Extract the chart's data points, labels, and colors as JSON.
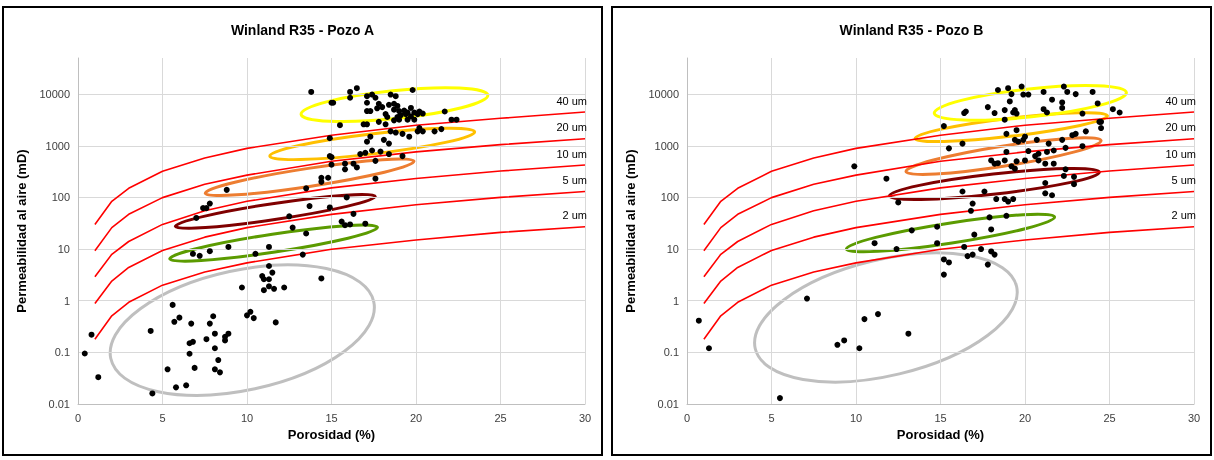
{
  "chart_data": [
    {
      "type": "scatter",
      "title": "Winland R35 - Pozo A",
      "xlabel": "Porosidad (%)",
      "ylabel": "Permeabilidad al aire (mD)",
      "xlim": [
        0,
        30
      ],
      "xticks": [
        0,
        5,
        10,
        15,
        20,
        25,
        30
      ],
      "ylim": [
        0.01,
        50000
      ],
      "yticks": [
        0.01,
        0.1,
        1,
        10,
        100,
        1000,
        10000
      ],
      "log": "y",
      "grid": true,
      "legend": false,
      "series": [
        {
          "type": "scatter",
          "color": "#000000",
          "marker": "circle",
          "x": [
            0.4,
            0.8,
            1.2,
            4.3,
            4.4,
            5.3,
            5.6,
            5.7,
            5.8,
            6.0,
            6.4,
            6.6,
            6.6,
            6.7,
            6.8,
            6.9,
            7.6,
            7.8,
            8.0,
            8.1,
            8.1,
            8.1,
            8.3,
            8.4,
            8.7,
            8.7,
            8.9,
            9.7,
            10.0,
            10.2,
            10.4,
            10.5,
            10.9,
            11.0,
            11.0,
            11.3,
            11.3,
            11.3,
            11.3,
            11.5,
            11.6,
            11.7,
            12.2,
            14.4,
            6.8,
            7.2,
            7.8,
            8.9,
            7.0,
            7.4,
            7.6,
            7.8,
            8.8,
            12.5,
            12.7,
            13.3,
            13.5,
            13.5,
            13.7,
            14.4,
            14.4,
            14.8,
            14.9,
            13.8,
            15.0,
            15.1,
            15.0,
            15.0,
            16.1,
            16.5,
            16.1,
            17.1,
            17.4,
            17.6,
            17.1,
            17.8,
            18.5,
            18.8,
            19.8,
            17.1,
            17.3,
            17.7,
            18.0,
            18.4,
            18.7,
            18.9,
            18.7,
            19.0,
            19.3,
            19.5,
            19.7,
            19.9,
            20.1,
            20.2,
            20.4,
            19.7,
            19.4,
            19.1,
            18.9,
            18.2,
            18.3,
            18.7,
            19.0,
            19.5,
            19.9,
            21.7,
            22.1,
            22.4,
            15.5,
            16.9,
            17.1,
            17.8,
            18.2,
            18.5,
            18.8,
            19.2,
            19.6,
            20.1,
            20.2,
            20.4,
            21.1,
            21.5,
            14.9,
            17.1,
            17.3,
            18.1,
            18.4,
            17.9,
            17.4,
            17.0,
            16.7,
            18.4,
            19.2,
            14.9,
            15.8,
            16.3,
            16.5,
            15.8,
            17.6,
            17.6,
            15.9,
            16.3,
            15.6,
            15.8,
            16.1,
            17.0
          ],
          "values": [
            0.095,
            0.22,
            0.033,
            0.26,
            0.016,
            0.047,
            0.83,
            0.39,
            0.021,
            0.47,
            0.023,
            0.15,
            0.094,
            0.36,
            0.16,
            0.05,
            0.18,
            0.36,
            0.5,
            0.23,
            0.047,
            0.12,
            0.071,
            0.041,
            0.2,
            0.17,
            0.23,
            1.8,
            0.52,
            0.61,
            0.46,
            8.1,
            3,
            2.6,
            1.6,
            11,
            4.7,
            2.6,
            1.9,
            3.5,
            1.7,
            0.38,
            1.8,
            2.7,
            8.1,
            7.4,
            9.1,
            11,
            40,
            62,
            62,
            76,
            140,
            43,
            26,
            7.8,
            20,
            150,
            68,
            240,
            200,
            240,
            64,
            11000,
            6800,
            6800,
            600,
            430,
            11000,
            13000,
            8500,
            9100,
            9800,
            8500,
            6800,
            6500,
            9800,
            9100,
            12000,
            4700,
            4700,
            5300,
            5600,
            6200,
            6500,
            5900,
            5000,
            4700,
            4800,
            4400,
            5400,
            4400,
            4100,
            4600,
            4200,
            3700,
            4100,
            3900,
            3600,
            4100,
            3600,
            3100,
            3200,
            3200,
            3200,
            4600,
            3200,
            3200,
            2500,
            2600,
            2600,
            2900,
            2600,
            1900,
            1800,
            1700,
            1500,
            1900,
            2200,
            1900,
            1900,
            2100,
            1400,
            1200,
            1500,
            1300,
            1100,
            770,
            810,
            730,
            690,
            690,
            630,
            630,
            450,
            450,
            380,
            350,
            510,
            230,
            100,
            48,
            34,
            29,
            30,
            31
          ]
        },
        {
          "type": "line",
          "name": "40 um",
          "color": "#ff0000",
          "marker": "none",
          "x": [
            1,
            2,
            3,
            5,
            7.5,
            10,
            15,
            20,
            25,
            30
          ],
          "values": [
            30,
            84,
            150,
            320,
            580,
            890,
            1600,
            2500,
            3400,
            4500
          ]
        },
        {
          "type": "line",
          "name": "20 um",
          "color": "#ff0000",
          "marker": "none",
          "x": [
            1,
            2,
            3,
            5,
            7.5,
            10,
            15,
            20,
            25,
            30
          ],
          "values": [
            9.3,
            26,
            47,
            99,
            180,
            270,
            500,
            760,
            1050,
            1370
          ]
        },
        {
          "type": "line",
          "name": "10 um",
          "color": "#ff0000",
          "marker": "none",
          "x": [
            1,
            2,
            3,
            5,
            7.5,
            10,
            15,
            20,
            25,
            30
          ],
          "values": [
            2.9,
            7.9,
            14,
            30,
            55,
            84,
            153,
            233,
            324,
            423
          ]
        },
        {
          "type": "line",
          "name": "5 um",
          "color": "#ff0000",
          "marker": "none",
          "x": [
            1,
            2,
            3,
            5,
            7.5,
            10,
            15,
            20,
            25,
            30
          ],
          "values": [
            0.88,
            2.4,
            4.4,
            9.4,
            17,
            26,
            47,
            72,
            100,
            130
          ]
        },
        {
          "type": "line",
          "name": "2 um",
          "color": "#ff0000",
          "marker": "none",
          "x": [
            1,
            2,
            3,
            5,
            7.5,
            10,
            15,
            20,
            25,
            30
          ],
          "values": [
            0.18,
            0.51,
            0.93,
            2,
            3.6,
            5.4,
            9.9,
            15,
            21,
            27
          ]
        }
      ]
    },
    {
      "type": "scatter",
      "title": "Winland R35 - Pozo B",
      "xlabel": "Porosidad (%)",
      "ylabel": "Permeabilidad al aire (mD)",
      "xlim": [
        0,
        30
      ],
      "xticks": [
        0,
        5,
        10,
        15,
        20,
        25,
        30
      ],
      "ylim": [
        0.01,
        50000
      ],
      "yticks": [
        0.01,
        0.1,
        1,
        10,
        100,
        1000,
        10000
      ],
      "log": "y",
      "grid": true,
      "legend": false,
      "series": [
        {
          "type": "scatter",
          "color": "#000000",
          "marker": "circle",
          "x": [
            0.7,
            1.3,
            5.5,
            7.1,
            8.9,
            9.3,
            10.2,
            10.5,
            11.3,
            13.1,
            9.9,
            11.8,
            12.5,
            13.3,
            11.1,
            12.4,
            18.4,
            19.0,
            19.8,
            19.2,
            19.9,
            20.2,
            21.1,
            21.6,
            22.3,
            22.5,
            23.0,
            24.0,
            24.3,
            22.2,
            22.2,
            19.1,
            19.4,
            19.3,
            19.5,
            18.8,
            18.2,
            17.8,
            16.5,
            16.4,
            18.8,
            21.1,
            21.3,
            23.4,
            25.2,
            25.6,
            15.2,
            16.3,
            15.5,
            18.9,
            19.5,
            19.4,
            19.6,
            20.0,
            19.9,
            20.7,
            21.4,
            22.2,
            22.8,
            23.0,
            23.6,
            24.4,
            24.5,
            24.5,
            18.9,
            20.2,
            20.6,
            20.8,
            21.3,
            21.7,
            22.4,
            23.4,
            18.0,
            18.2,
            18.4,
            18.8,
            19.5,
            20.0,
            19.2,
            19.4,
            20.8,
            21.2,
            21.7,
            22.4,
            22.9,
            22.3,
            21.2,
            22.9,
            21.2,
            21.6,
            17.6,
            16.3,
            18.3,
            18.8,
            19.3,
            19.0,
            16.9,
            16.8,
            17.9,
            18.9,
            14.8,
            17.0,
            18.0,
            14.8,
            17.4,
            16.9,
            18.2,
            15.2,
            16.6,
            15.2,
            15.5,
            17.8,
            18.0,
            16.4
          ],
          "values": [
            0.41,
            0.12,
            0.013,
            1.1,
            0.14,
            0.17,
            0.12,
            0.44,
            0.55,
            0.23,
            400,
            230,
            80,
            23,
            13,
            10,
            12000,
            13000,
            14000,
            10000,
            9800,
            9800,
            11000,
            7800,
            14000,
            11000,
            10000,
            11000,
            6600,
            6900,
            5400,
            7200,
            4900,
            4400,
            4200,
            4900,
            4300,
            5600,
            4600,
            4300,
            3200,
            5100,
            4400,
            4200,
            5100,
            4400,
            2400,
            1100,
            890,
            1700,
            2000,
            1300,
            1200,
            1500,
            1300,
            1300,
            1100,
            1300,
            1600,
            1700,
            1900,
            2900,
            2200,
            2900,
            760,
            790,
            630,
            700,
            760,
            810,
            910,
            980,
            520,
            450,
            460,
            520,
            500,
            520,
            400,
            360,
            520,
            450,
            450,
            350,
            250,
            260,
            190,
            180,
            120,
            110,
            130,
            130,
            93,
            93,
            93,
            83,
            76,
            55,
            41,
            44,
            27,
            19,
            24,
            13,
            10,
            7.8,
            7.8,
            6.3,
            7.3,
            3.2,
            5.5,
            5,
            9,
            11
          ]
        },
        {
          "type": "line",
          "name": "40 um",
          "color": "#ff0000",
          "marker": "none",
          "x": [
            1,
            2,
            3,
            5,
            7.5,
            10,
            15,
            20,
            25,
            30
          ],
          "values": [
            30,
            84,
            150,
            320,
            580,
            890,
            1600,
            2500,
            3400,
            4500
          ]
        },
        {
          "type": "line",
          "name": "20 um",
          "color": "#ff0000",
          "marker": "none",
          "x": [
            1,
            2,
            3,
            5,
            7.5,
            10,
            15,
            20,
            25,
            30
          ],
          "values": [
            9.3,
            26,
            47,
            99,
            180,
            270,
            500,
            760,
            1050,
            1370
          ]
        },
        {
          "type": "line",
          "name": "10 um",
          "color": "#ff0000",
          "marker": "none",
          "x": [
            1,
            2,
            3,
            5,
            7.5,
            10,
            15,
            20,
            25,
            30
          ],
          "values": [
            2.9,
            7.9,
            14,
            30,
            55,
            84,
            153,
            233,
            324,
            423
          ]
        },
        {
          "type": "line",
          "name": "5 um",
          "color": "#ff0000",
          "marker": "none",
          "x": [
            1,
            2,
            3,
            5,
            7.5,
            10,
            15,
            20,
            25,
            30
          ],
          "values": [
            0.88,
            2.4,
            4.4,
            9.4,
            17,
            26,
            47,
            72,
            100,
            130
          ]
        },
        {
          "type": "line",
          "name": "2 um",
          "color": "#ff0000",
          "marker": "none",
          "x": [
            1,
            2,
            3,
            5,
            7.5,
            10,
            15,
            20,
            25,
            30
          ],
          "values": [
            0.18,
            0.51,
            0.93,
            2,
            3.6,
            5.4,
            9.9,
            15,
            21,
            27
          ]
        }
      ]
    }
  ]
}
